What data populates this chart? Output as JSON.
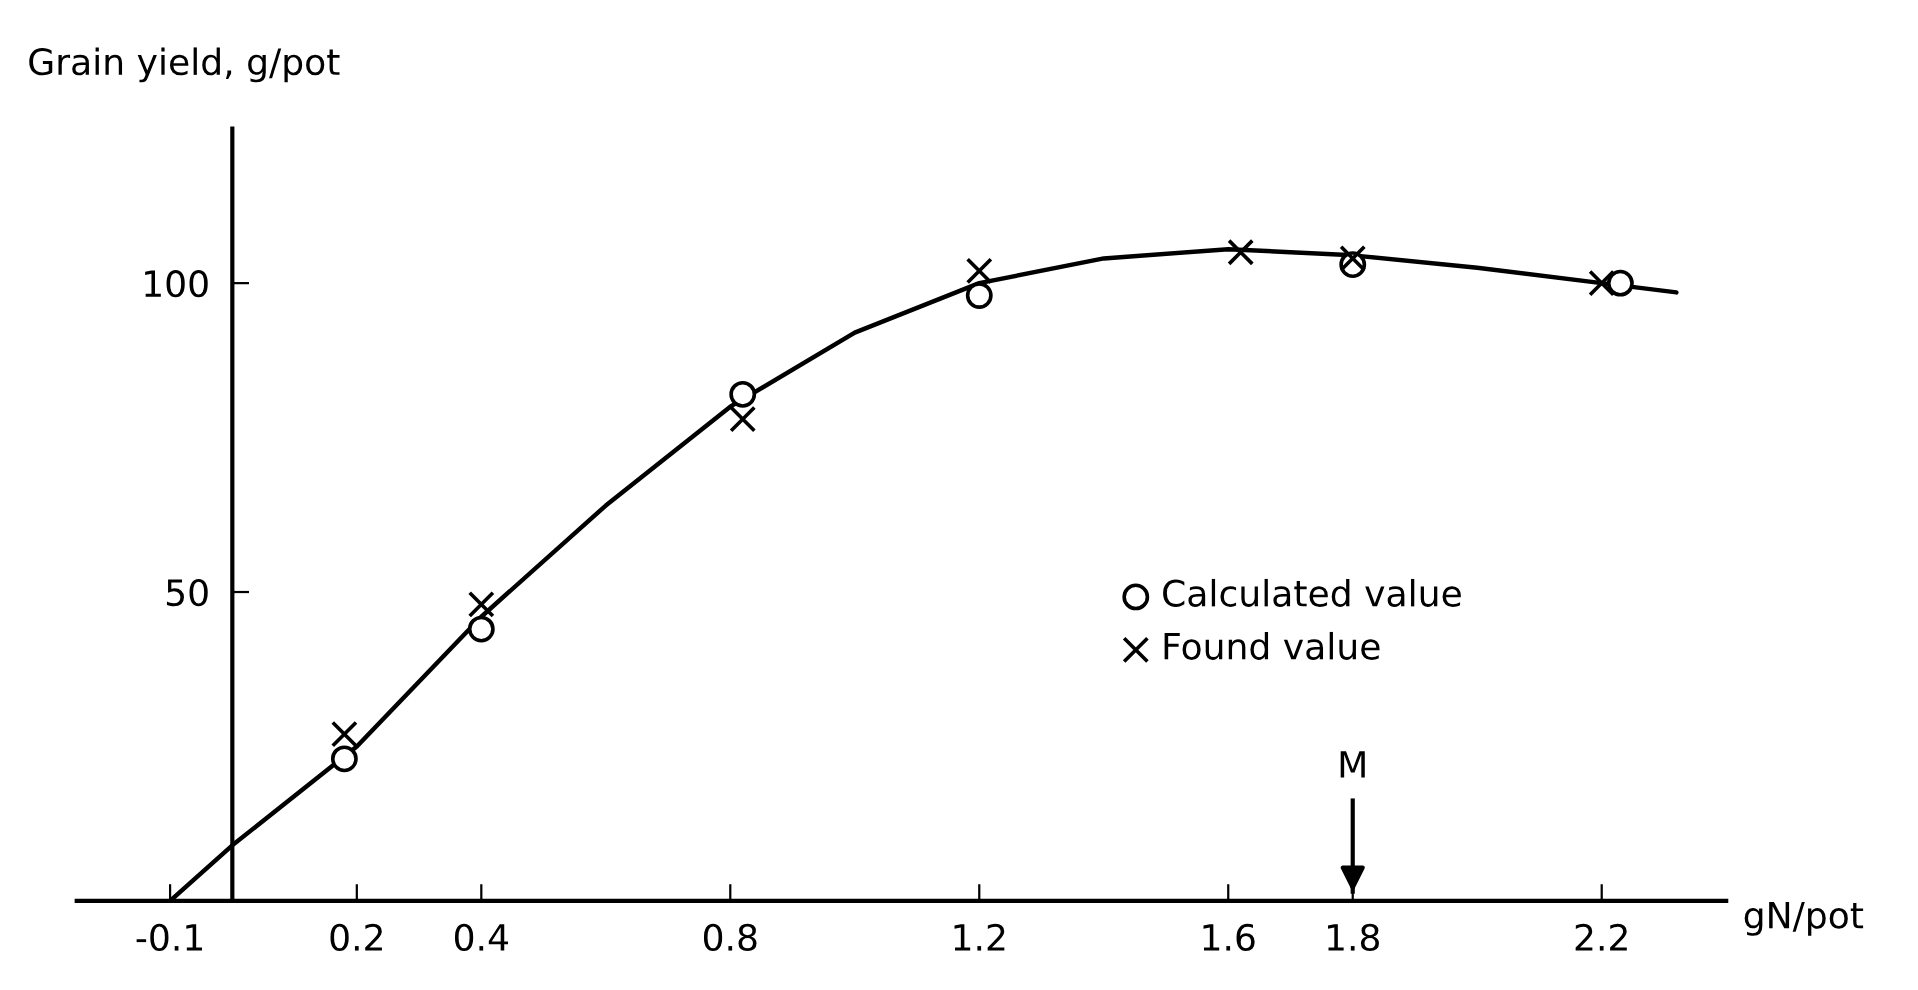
{
  "chart_data": {
    "type": "line",
    "xlabel": "gN/pot",
    "ylabel": "Grain yield, g/pot",
    "xlim": [
      -0.25,
      2.4
    ],
    "ylim": [
      0,
      125
    ],
    "xticks": [
      -0.1,
      {
        "value": 0,
        "label": null
      },
      0.2,
      0.4,
      0.8,
      1.2,
      1.6,
      1.8,
      2.2
    ],
    "yticks": [
      50,
      100
    ],
    "grid": false,
    "legend": "center right",
    "series": [
      {
        "color": "#000000",
        "marker": "none",
        "x": [
          -0.1,
          0,
          0.2,
          0.4,
          0.6,
          0.8,
          1.0,
          1.2,
          1.4,
          1.6,
          1.8,
          2.0,
          2.2,
          2.32
        ],
        "values": [
          0,
          9,
          25,
          46,
          64,
          80,
          92,
          100,
          104,
          105.5,
          104.5,
          102.5,
          100,
          98.5
        ]
      },
      {
        "type": "scatter",
        "name": "Calculated value",
        "color": "#000000",
        "marker": "circle",
        "x": [
          0.18,
          0.4,
          0.82,
          1.2,
          1.8,
          2.23
        ],
        "values": [
          23,
          44,
          82,
          98,
          103,
          100
        ]
      },
      {
        "type": "scatter",
        "name": "Found value",
        "color": "#000000",
        "marker": "cross",
        "x": [
          0.18,
          0.4,
          0.82,
          1.2,
          1.62,
          1.8,
          2.2
        ],
        "values": [
          27,
          48,
          78,
          102,
          105,
          104,
          100
        ]
      }
    ],
    "ref_lines": [
      {
        "axis": "x",
        "value": 1.8,
        "label": "M"
      }
    ]
  }
}
